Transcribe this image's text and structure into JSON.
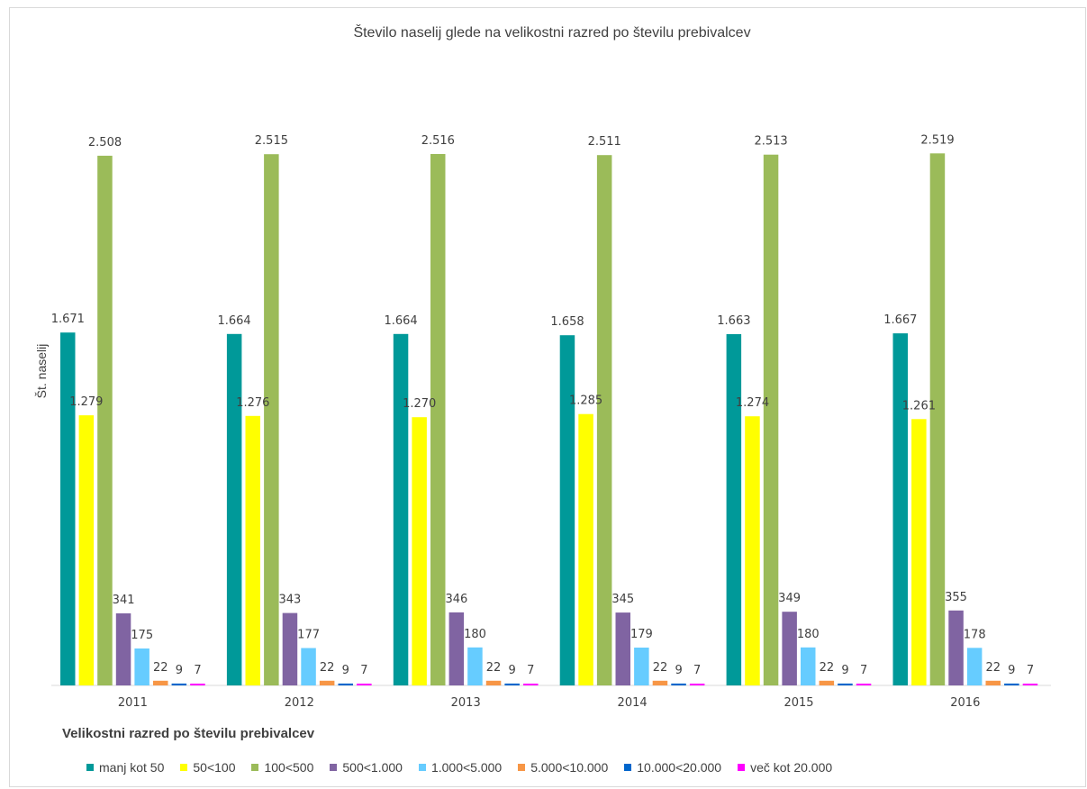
{
  "chart_data": {
    "type": "bar",
    "title": "Število naselij glede na velikostni razred po številu prebivalcev",
    "ylabel": "Št. naselij",
    "legend_title": "Velikostni razred po številu prebivalcev",
    "legend_position": "bottom",
    "grid": false,
    "ylim": [
      0,
      2700
    ],
    "categories": [
      "2011",
      "2012",
      "2013",
      "2014",
      "2015",
      "2016"
    ],
    "series": [
      {
        "name": "manj kot 50",
        "color": "#009999",
        "values": [
          1671,
          1664,
          1664,
          1658,
          1663,
          1667
        ],
        "labels": [
          "1.671",
          "1.664",
          "1.664",
          "1.658",
          "1.663",
          "1.667"
        ]
      },
      {
        "name": "50<100",
        "color": "#ffff00",
        "values": [
          1279,
          1276,
          1270,
          1285,
          1274,
          1261
        ],
        "labels": [
          "1.279",
          "1.276",
          "1.270",
          "1.285",
          "1.274",
          "1.261"
        ]
      },
      {
        "name": "100<500",
        "color": "#9bbb59",
        "values": [
          2508,
          2515,
          2516,
          2511,
          2513,
          2519
        ],
        "labels": [
          "2.508",
          "2.515",
          "2.516",
          "2.511",
          "2.513",
          "2.519"
        ]
      },
      {
        "name": "500<1.000",
        "color": "#8064a2",
        "values": [
          341,
          343,
          346,
          345,
          349,
          355
        ],
        "labels": [
          "341",
          "343",
          "346",
          "345",
          "349",
          "355"
        ]
      },
      {
        "name": "1.000<5.000",
        "color": "#66ccff",
        "values": [
          175,
          177,
          180,
          179,
          180,
          178
        ],
        "labels": [
          "175",
          "177",
          "180",
          "179",
          "180",
          "178"
        ]
      },
      {
        "name": "5.000<10.000",
        "color": "#f79646",
        "values": [
          22,
          22,
          22,
          22,
          22,
          22
        ],
        "labels": [
          "22",
          "22",
          "22",
          "22",
          "22",
          "22"
        ]
      },
      {
        "name": "10.000<20.000",
        "color": "#0066cc",
        "values": [
          9,
          9,
          9,
          9,
          9,
          9
        ],
        "labels": [
          "9",
          "9",
          "9",
          "9",
          "9",
          "9"
        ]
      },
      {
        "name": "več kot 20.000",
        "color": "#ff00ff",
        "values": [
          7,
          7,
          7,
          7,
          7,
          7
        ],
        "labels": [
          "7",
          "7",
          "7",
          "7",
          "7",
          "7"
        ]
      }
    ]
  }
}
